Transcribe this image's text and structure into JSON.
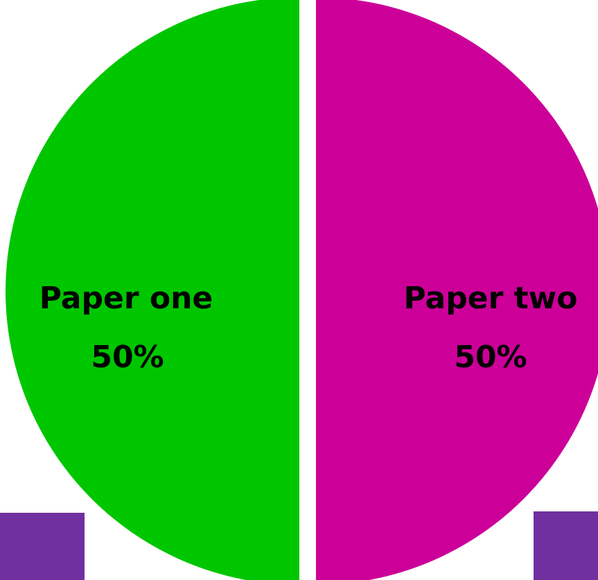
{
  "chart_data": {
    "type": "pie",
    "slices": [
      {
        "label": "Paper one",
        "value": 50,
        "value_label": "50%",
        "color": "#00c600"
      },
      {
        "label": "Paper two",
        "value": 50,
        "value_label": "50%",
        "color": "#cc0099"
      }
    ],
    "title": "",
    "legend": "none"
  },
  "decor": {
    "corner_color": "#7030a0"
  }
}
